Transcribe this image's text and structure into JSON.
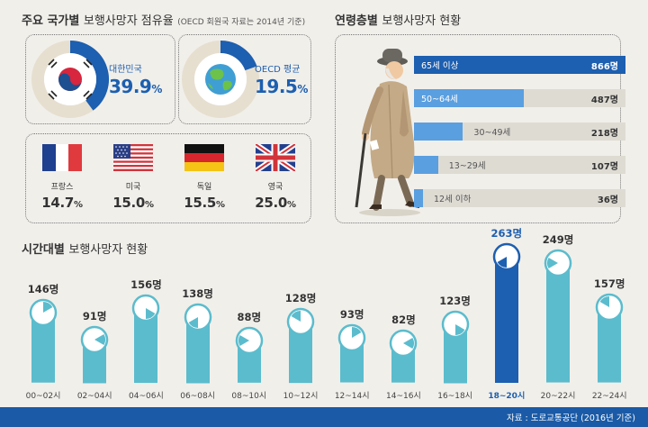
{
  "share": {
    "title_bold": "주요 국가별",
    "title_light": "보행사망자 점유율",
    "note": "(OECD 회원국 자료는 2014년 기준)",
    "korea": {
      "label": "대한민국",
      "value": 39.9,
      "value_text": "39.9",
      "unit": "%"
    },
    "oecd": {
      "label": "OECD 평균",
      "value": 19.5,
      "value_text": "19.5",
      "unit": "%"
    },
    "countries": [
      {
        "name": "프랑스",
        "value_text": "14.7",
        "unit": "%",
        "flag": "france-flag-icon"
      },
      {
        "name": "미국",
        "value_text": "15.0",
        "unit": "%",
        "flag": "usa-flag-icon"
      },
      {
        "name": "독일",
        "value_text": "15.5",
        "unit": "%",
        "flag": "germany-flag-icon"
      },
      {
        "name": "영국",
        "value_text": "25.0",
        "unit": "%",
        "flag": "uk-flag-icon"
      }
    ]
  },
  "age": {
    "title_bold": "연령층별",
    "title_light": "보행사망자 현황",
    "rows": [
      {
        "label": "65세 이상",
        "value": 866,
        "value_text": "866명"
      },
      {
        "label": "50~64세",
        "value": 487,
        "value_text": "487명"
      },
      {
        "label": "30~49세",
        "value": 218,
        "value_text": "218명"
      },
      {
        "label": "13~29세",
        "value": 107,
        "value_text": "107명"
      },
      {
        "label": "12세 이하",
        "value": 36,
        "value_text": "36명"
      }
    ]
  },
  "hourly": {
    "title_bold": "시간대별",
    "title_light": "보행사망자 현황",
    "highlight_index": 9
  },
  "chart_data": {
    "type": "bar",
    "categories": [
      "00~02시",
      "02~04시",
      "04~06시",
      "06~08시",
      "08~10시",
      "10~12시",
      "12~14시",
      "14~16시",
      "16~18시",
      "18~20시",
      "20~22시",
      "22~24시"
    ],
    "values": [
      146,
      91,
      156,
      138,
      88,
      128,
      93,
      82,
      123,
      263,
      249,
      157
    ],
    "value_labels": [
      "146명",
      "91명",
      "156명",
      "138명",
      "88명",
      "128명",
      "93명",
      "82명",
      "123명",
      "263명",
      "249명",
      "157명"
    ],
    "title": "시간대별 보행사망자 현황"
  },
  "colors": {
    "accent": "#1d5fb0",
    "bar": "#5bbccd",
    "bar_highlight": "#1d5fb0",
    "donut_track": "#e6dfd0",
    "footer": "#1a5aa6"
  },
  "source": "자료 : 도로교통공단 (2016년 기준)"
}
